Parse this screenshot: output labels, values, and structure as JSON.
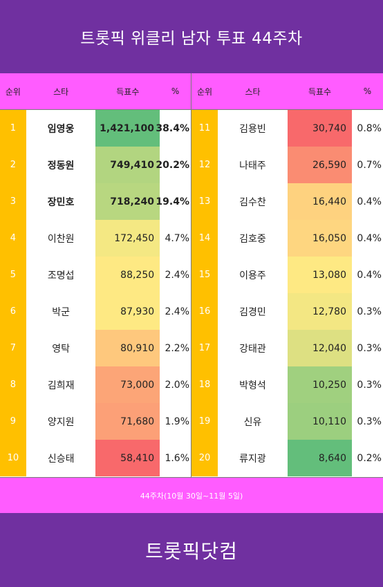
{
  "title": "트롯픽 위클리 남자 투표 44주차",
  "headers": {
    "rank": "순위",
    "star": "스타",
    "votes": "득표수",
    "percent": "%"
  },
  "rows_left": [
    {
      "rank": "1",
      "name": "임영웅",
      "votes": "1,421,100",
      "percent": "38.4%",
      "color": "#63be7b",
      "bold": true
    },
    {
      "rank": "2",
      "name": "정동원",
      "votes": "749,410",
      "percent": "20.2%",
      "color": "#b2d580",
      "bold": true
    },
    {
      "rank": "3",
      "name": "장민호",
      "votes": "718,240",
      "percent": "19.4%",
      "color": "#b8d780",
      "bold": true
    },
    {
      "rank": "4",
      "name": "이찬원",
      "votes": "172,450",
      "percent": "4.7%",
      "color": "#f4e883",
      "bold": false
    },
    {
      "rank": "5",
      "name": "조명섭",
      "votes": "88,250",
      "percent": "2.4%",
      "color": "#fee983",
      "bold": false
    },
    {
      "rank": "6",
      "name": "박군",
      "votes": "87,930",
      "percent": "2.4%",
      "color": "#fee983",
      "bold": false
    },
    {
      "rank": "7",
      "name": "영탁",
      "votes": "80,910",
      "percent": "2.2%",
      "color": "#fec87d",
      "bold": false
    },
    {
      "rank": "8",
      "name": "김희재",
      "votes": "73,000",
      "percent": "2.0%",
      "color": "#fca577",
      "bold": false
    },
    {
      "rank": "9",
      "name": "양지원",
      "votes": "71,680",
      "percent": "1.9%",
      "color": "#fca077",
      "bold": false
    },
    {
      "rank": "10",
      "name": "신승태",
      "votes": "58,410",
      "percent": "1.6%",
      "color": "#f8696b",
      "bold": false
    }
  ],
  "rows_right": [
    {
      "rank": "11",
      "name": "김용빈",
      "votes": "30,740",
      "percent": "0.8%",
      "color": "#f8696b",
      "bold": false
    },
    {
      "rank": "12",
      "name": "나태주",
      "votes": "26,590",
      "percent": "0.7%",
      "color": "#fa8c72",
      "bold": false
    },
    {
      "rank": "13",
      "name": "김수찬",
      "votes": "16,440",
      "percent": "0.4%",
      "color": "#fed27f",
      "bold": false
    },
    {
      "rank": "14",
      "name": "김호중",
      "votes": "16,050",
      "percent": "0.4%",
      "color": "#fed680",
      "bold": false
    },
    {
      "rank": "15",
      "name": "이용주",
      "votes": "13,080",
      "percent": "0.4%",
      "color": "#fee983",
      "bold": false
    },
    {
      "rank": "16",
      "name": "김경민",
      "votes": "12,780",
      "percent": "0.3%",
      "color": "#f3e783",
      "bold": false
    },
    {
      "rank": "17",
      "name": "강태관",
      "votes": "12,040",
      "percent": "0.3%",
      "color": "#dde082",
      "bold": false
    },
    {
      "rank": "18",
      "name": "박형석",
      "votes": "10,250",
      "percent": "0.3%",
      "color": "#a0d07f",
      "bold": false
    },
    {
      "rank": "19",
      "name": "신유",
      "votes": "10,110",
      "percent": "0.3%",
      "color": "#9ccf7f",
      "bold": false
    },
    {
      "rank": "20",
      "name": "류지광",
      "votes": "8,640",
      "percent": "0.2%",
      "color": "#63be7b",
      "bold": false
    }
  ],
  "footer_note": "44주차(10월 30일~11월 5일)",
  "brand": "트롯픽닷컴"
}
